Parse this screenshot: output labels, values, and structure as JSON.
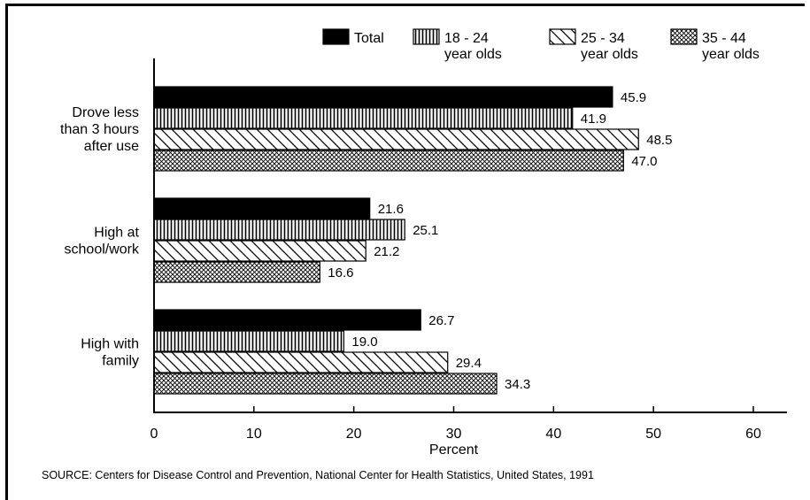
{
  "chart_data": {
    "type": "bar",
    "orientation": "horizontal",
    "categories": [
      [
        "Drove less",
        "than 3 hours",
        "after use"
      ],
      [
        "High at",
        "school/work"
      ],
      [
        "High with",
        "family"
      ]
    ],
    "series": [
      {
        "name": "Total",
        "name_lines": [
          "Total"
        ],
        "pattern": "solid",
        "values": [
          45.9,
          21.6,
          26.7
        ],
        "value_labels": [
          "45.9",
          "21.6",
          "26.7"
        ]
      },
      {
        "name": "18 - 24 year olds",
        "name_lines": [
          "18 - 24",
          "year olds"
        ],
        "pattern": "vertical-lines",
        "values": [
          41.9,
          25.1,
          19.0
        ],
        "value_labels": [
          "41.9",
          "25.1",
          "19.0"
        ]
      },
      {
        "name": "25 - 34 year olds",
        "name_lines": [
          "25 - 34",
          "year olds"
        ],
        "pattern": "diagonal-lines",
        "values": [
          48.5,
          21.2,
          29.4
        ],
        "value_labels": [
          "48.5",
          "21.2",
          "29.4"
        ]
      },
      {
        "name": "35 - 44 year olds",
        "name_lines": [
          "35 - 44",
          "year olds"
        ],
        "pattern": "crosshatch",
        "values": [
          47.0,
          16.6,
          34.3
        ],
        "value_labels": [
          "47.0",
          "16.6",
          "34.3"
        ]
      }
    ],
    "xlabel": "Percent",
    "xlim": [
      0,
      60
    ],
    "xticks": [
      "0",
      "10",
      "20",
      "30",
      "40",
      "50",
      "60"
    ],
    "legend_position": "top",
    "grid": false
  },
  "source": "SOURCE: Centers for Disease Control and Prevention, National Center for Health Statistics, United States, 1991"
}
